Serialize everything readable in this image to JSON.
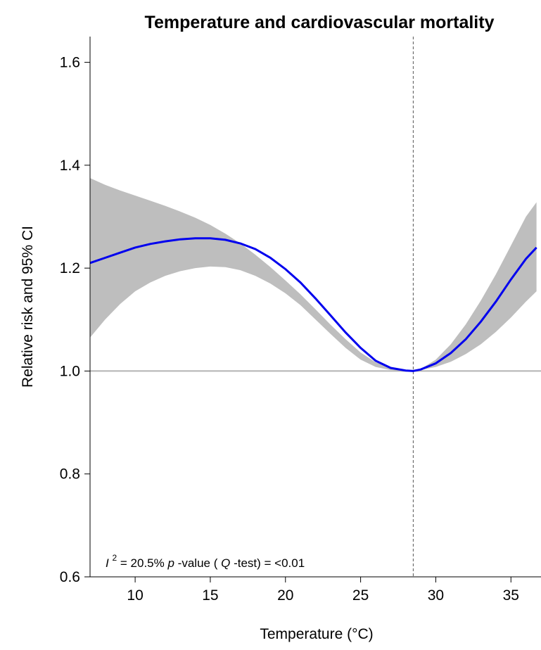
{
  "chart_data": {
    "type": "line",
    "title": "Temperature and cardiovascular mortality",
    "xlabel": "Temperature (°C)",
    "ylabel": "Relative risk and 95% CI",
    "xlim": [
      7,
      37
    ],
    "ylim": [
      0.6,
      1.65
    ],
    "x_ticks": [
      10,
      15,
      20,
      25,
      30,
      35
    ],
    "y_ticks": [
      0.6,
      0.8,
      1.0,
      1.2,
      1.4,
      1.6
    ],
    "x_tick_labels": [
      "10",
      "15",
      "20",
      "25",
      "30",
      "35"
    ],
    "y_tick_labels": [
      "0.6",
      "0.8",
      "1.0",
      "1.2",
      "1.4",
      "1.6"
    ],
    "reference_line_y": 1.0,
    "vertical_line_x": 28.5,
    "series": [
      {
        "color": "#0000ee",
        "x": [
          7,
          8,
          9,
          10,
          11,
          12,
          13,
          14,
          15,
          16,
          17,
          18,
          19,
          20,
          21,
          22,
          23,
          24,
          25,
          26,
          27,
          28,
          28.5,
          29,
          30,
          31,
          32,
          33,
          34,
          35,
          36,
          36.7
        ],
        "y": [
          1.21,
          1.22,
          1.23,
          1.24,
          1.247,
          1.252,
          1.256,
          1.258,
          1.258,
          1.255,
          1.248,
          1.237,
          1.22,
          1.198,
          1.172,
          1.141,
          1.108,
          1.075,
          1.045,
          1.02,
          1.006,
          1.001,
          1.0,
          1.003,
          1.015,
          1.035,
          1.062,
          1.096,
          1.135,
          1.178,
          1.218,
          1.24
        ],
        "lower": [
          1.065,
          1.1,
          1.13,
          1.155,
          1.172,
          1.185,
          1.194,
          1.2,
          1.203,
          1.202,
          1.196,
          1.185,
          1.17,
          1.151,
          1.128,
          1.1,
          1.072,
          1.045,
          1.022,
          1.008,
          1.002,
          1.0,
          1.0,
          1.002,
          1.008,
          1.018,
          1.033,
          1.052,
          1.076,
          1.104,
          1.135,
          1.155
        ],
        "upper": [
          1.375,
          1.362,
          1.351,
          1.341,
          1.331,
          1.321,
          1.31,
          1.298,
          1.284,
          1.267,
          1.248,
          1.226,
          1.202,
          1.176,
          1.149,
          1.12,
          1.09,
          1.062,
          1.036,
          1.017,
          1.007,
          1.001,
          1.0,
          1.004,
          1.022,
          1.052,
          1.091,
          1.137,
          1.188,
          1.244,
          1.3,
          1.328
        ]
      }
    ],
    "annotation": {
      "i_letter": "I",
      "superscript": "2",
      "i2_value": " = 20.5% ",
      "p_letter": "p",
      "p_text": "-value (",
      "q_letter": "Q",
      "q_text": "-test) = <0.01"
    },
    "colors": {
      "line": "#0000ee",
      "band": "#bebebe",
      "reference": "#b3b3b3",
      "vline": "#555555"
    },
    "grid": false
  }
}
